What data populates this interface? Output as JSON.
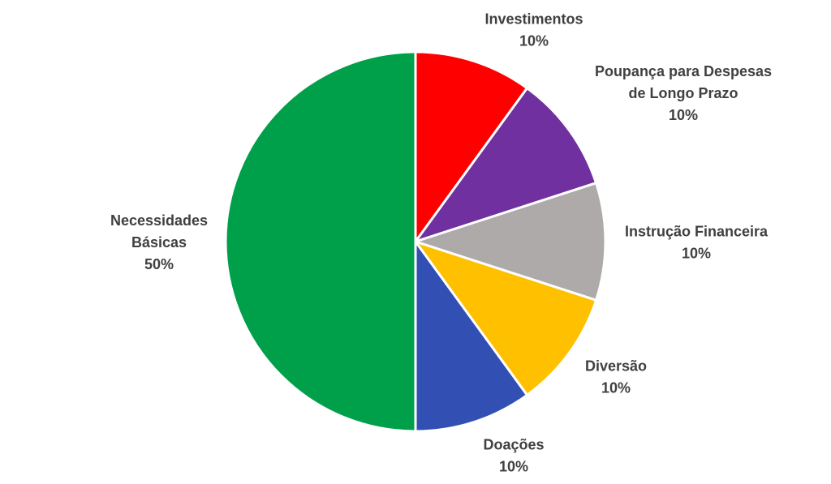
{
  "chart_data": {
    "type": "pie",
    "title": "",
    "start_angle_deg": 0,
    "direction": "clockwise",
    "slices": [
      {
        "label": "Investimentos",
        "label_lines": [
          "Investimentos"
        ],
        "value": 10,
        "value_label": "10%",
        "color": "#ff0000"
      },
      {
        "label": "Poupança para Despesas de Longo Prazo",
        "label_lines": [
          "Poupança para Despesas",
          "de Longo Prazo"
        ],
        "value": 10,
        "value_label": "10%",
        "color": "#7030a0"
      },
      {
        "label": "Instrução Financeira",
        "label_lines": [
          "Instrução Financeira"
        ],
        "value": 10,
        "value_label": "10%",
        "color": "#aeaaaa"
      },
      {
        "label": "Diversão",
        "label_lines": [
          "Diversão"
        ],
        "value": 10,
        "value_label": "10%",
        "color": "#ffc000"
      },
      {
        "label": "Doações",
        "label_lines": [
          "Doações"
        ],
        "value": 10,
        "value_label": "10%",
        "color": "#3250b4"
      },
      {
        "label": "Necessidades Básicas",
        "label_lines": [
          "Necessidades",
          "Básicas"
        ],
        "value": 50,
        "value_label": "50%",
        "color": "#00a04a"
      }
    ]
  }
}
